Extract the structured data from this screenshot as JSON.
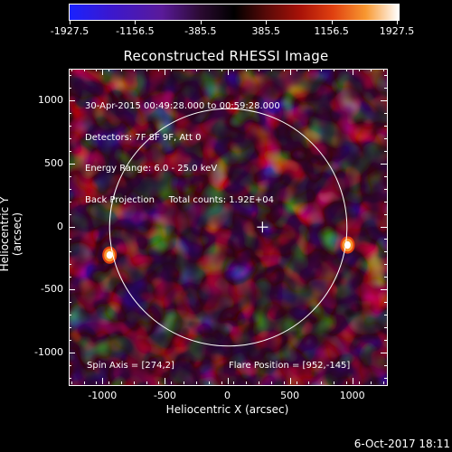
{
  "colorbar": {
    "ticks": [
      -1927.5,
      -1156.5,
      -385.5,
      385.5,
      1156.5,
      1927.5
    ],
    "labels": [
      "-1927.5",
      "-1156.5",
      "-385.5",
      "385.5",
      "1156.5",
      "1927.5"
    ],
    "colors": [
      "#1a22ff",
      "#5a1a9a",
      "#000000",
      "#a81208",
      "#f89830",
      "#ffffff"
    ]
  },
  "chart_data": {
    "type": "heatmap",
    "title": "Reconstructed RHESSI Image",
    "xlabel": "Heliocentric X (arcsec)",
    "ylabel": "Heliocentric Y (arcsec)",
    "xlim": [
      -1270,
      1270
    ],
    "ylim": [
      -1250,
      1250
    ],
    "xticks": [
      -1000,
      -500,
      0,
      500,
      1000
    ],
    "xtick_labels": [
      "-1000",
      "-500",
      "0",
      "500",
      "1000"
    ],
    "yticks": [
      -1000,
      -500,
      0,
      500,
      1000
    ],
    "ytick_labels": [
      "-1000",
      "-500",
      "0",
      "500",
      "1000"
    ],
    "clim": [
      -1927.5,
      1927.5
    ],
    "solar_limb_radius": 950,
    "flare_marker": {
      "x": 274,
      "y": 2
    },
    "hot_spots": [
      {
        "x": -950,
        "y": -220,
        "level": 1900
      },
      {
        "x": 955,
        "y": -140,
        "level": 1900
      }
    ]
  },
  "annotations": {
    "time_range": "30-Apr-2015 00:49:28.000 to 00:59:28.000",
    "detectors": "Detectors: 7F 8F 9F, Att 0",
    "energy": "Energy Range: 6.0 - 25.0 keV",
    "method": "Back Projection     Total counts: 1.92E+04",
    "spin_axis": "Spin Axis = [274,2]",
    "flare_position": "Flare Position = [952,-145]"
  },
  "footer": {
    "date": "6-Oct-2017 18:11"
  }
}
